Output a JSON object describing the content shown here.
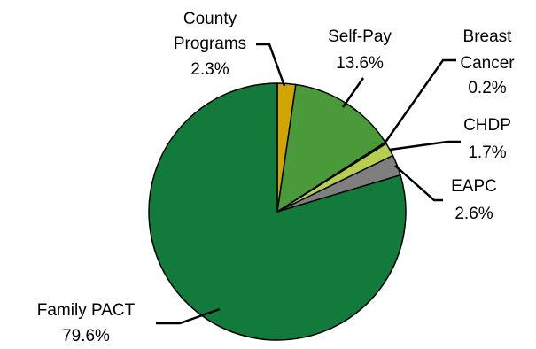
{
  "chart_data": {
    "type": "pie",
    "title": "",
    "slices": [
      {
        "label_lines": [
          "County",
          "Programs"
        ],
        "value": 2.3,
        "value_label": "2.3%",
        "color": "#d2a400"
      },
      {
        "label_lines": [
          "Self-Pay"
        ],
        "value": 13.6,
        "value_label": "13.6%",
        "color": "#4a9a3a"
      },
      {
        "label_lines": [
          "Breast",
          "Cancer"
        ],
        "value": 0.2,
        "value_label": "0.2%",
        "color": "#1f6b2a"
      },
      {
        "label_lines": [
          "CHDP"
        ],
        "value": 1.7,
        "value_label": "1.7%",
        "color": "#b7cf4f"
      },
      {
        "label_lines": [
          "EAPC"
        ],
        "value": 2.6,
        "value_label": "2.6%",
        "color": "#7f7f7f"
      },
      {
        "label_lines": [
          "Family PACT"
        ],
        "value": 79.6,
        "value_label": "79.6%",
        "color": "#127a3b"
      }
    ],
    "start_angle_deg": 0,
    "direction": "clockwise",
    "legend": "none",
    "labels": "outside-with-leader-lines"
  }
}
